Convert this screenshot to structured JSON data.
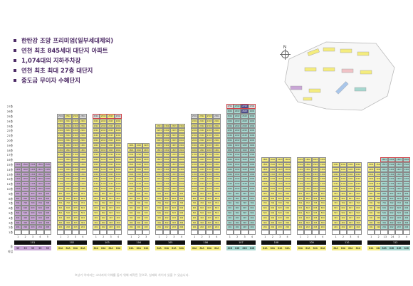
{
  "features": [
    "한탄강 조망 프리미엄(일부세대제외)",
    "연천 최초 845세대 대단지 아파트",
    "1,074대의 지하주차장",
    "연천 최초 최대 27층 대단지",
    "중도금 무이자 수혜단지"
  ],
  "map": {
    "north_label": "N"
  },
  "floors": [
    "27층",
    "26층",
    "25층",
    "24층",
    "23층",
    "22층",
    "21층",
    "20층",
    "19층",
    "18층",
    "17층",
    "16층",
    "15층",
    "14층",
    "13층",
    "12층",
    "11층",
    "10층",
    "9층",
    "8층",
    "7층",
    "6층",
    "5층",
    "4층",
    "3층",
    "2층",
    "1층"
  ],
  "row_labels": {
    "dong": "동",
    "type": "타입"
  },
  "buildings": [
    {
      "name": "101",
      "floors": 15,
      "units": 5,
      "color": "pur",
      "type_color": "pur",
      "type_labels": [
        "59",
        "59",
        "59",
        "59",
        "59"
      ]
    },
    {
      "name": "102",
      "floors": 25,
      "units": 4,
      "color": "yel",
      "type_color": "yel",
      "type_labels": [
        "84A",
        "84A",
        "84A",
        "84A"
      ]
    },
    {
      "name": "103",
      "floors": 25,
      "units": 4,
      "color": "yel",
      "type_color": "yel",
      "type_labels": [
        "84A",
        "84A",
        "84A",
        "84A"
      ]
    },
    {
      "name": "104",
      "floors": 19,
      "units": 3,
      "color": "yel",
      "type_color": "yel",
      "type_labels": [
        "84A",
        "84A",
        "84A"
      ]
    },
    {
      "name": "105",
      "floors": 23,
      "units": 4,
      "color": "yel",
      "type_color": "yel",
      "type_labels": [
        "84A",
        "84A",
        "84A",
        "84A"
      ]
    },
    {
      "name": "106",
      "floors": 25,
      "units": 4,
      "color": "yel",
      "type_color": "yel",
      "type_labels": [
        "84A",
        "84A",
        "84A",
        "84A"
      ]
    },
    {
      "name": "107",
      "floors": 27,
      "units": 4,
      "color": "grn",
      "type_color": "grn",
      "type_labels": [
        "84B",
        "84B",
        "84B",
        "84B"
      ]
    },
    {
      "name": "108",
      "floors": 16,
      "units": 4,
      "color": "yel",
      "type_color": "yel",
      "type_labels": [
        "84A",
        "84A",
        "84A",
        "84A"
      ]
    },
    {
      "name": "109",
      "floors": 16,
      "units": 4,
      "color": "yel",
      "type_color": "yel",
      "type_labels": [
        "84A",
        "84A",
        "84A",
        "84A"
      ]
    },
    {
      "name": "110",
      "floors": 15,
      "units": 4,
      "color": "yel",
      "type_color": "yel",
      "type_labels": [
        "84A",
        "84A",
        "84A",
        "84A"
      ]
    },
    {
      "name": "111",
      "floors": 15,
      "units": 4,
      "color": "yel",
      "type_color": "yel",
      "type_labels": [
        "84A",
        "84A",
        "84A",
        "84A"
      ]
    },
    {
      "name": "112",
      "floors": 16,
      "units": 4,
      "color": "grn",
      "type_color": "grn",
      "type_labels": [
        "84B",
        "84B",
        "84B",
        "84B"
      ]
    }
  ],
  "footnote": "※상기 이미지는 소비자의 이해를 돕기 위해 제작된 것으로, 실제와 차이가 있을 수 있습니다."
}
